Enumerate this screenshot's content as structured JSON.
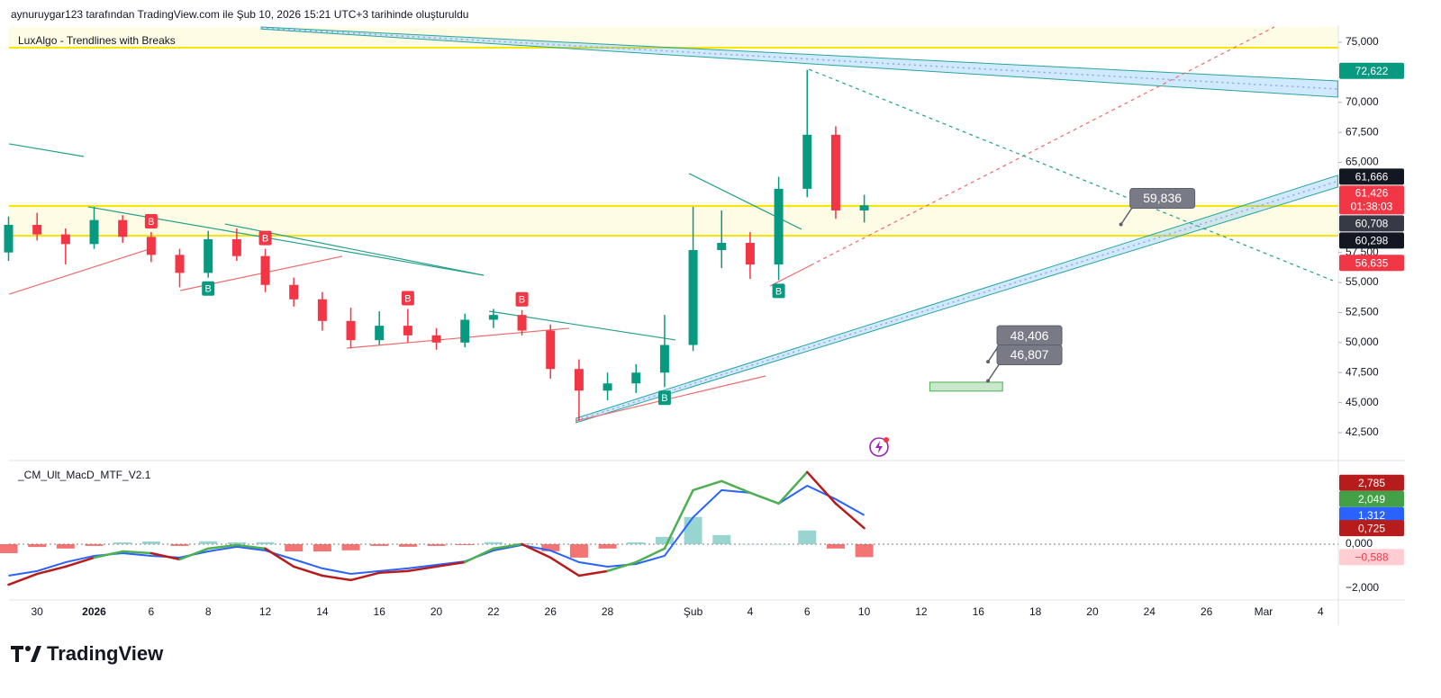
{
  "header": "aynuruygar123 tarafından TradingView.com ile Şub 10, 2026 15:21 UTC+3 tarihinde oluşturuldu",
  "logo": "TradingView",
  "chart_data": {
    "type": "candlestick",
    "indicator_title": "LuxAlgo - Trendlines with Breaks",
    "categories": [
      null,
      "30",
      null,
      "2026",
      null,
      "6",
      null,
      "8",
      null,
      "12",
      null,
      "14",
      null,
      "16",
      null,
      "20",
      null,
      "22",
      null,
      "26",
      null,
      "28",
      null,
      null,
      "Şub",
      null,
      "4",
      null,
      "6",
      null,
      "10",
      null,
      "12",
      null,
      "16",
      null,
      "18",
      null,
      "20",
      null,
      "24",
      null,
      "26",
      null,
      "Mar",
      null,
      "4"
    ],
    "open": [
      57500,
      59800,
      59000,
      58200,
      60200,
      58800,
      57300,
      55800,
      58600,
      57200,
      54800,
      53600,
      51800,
      50200,
      51400,
      50600,
      50000,
      51900,
      52300,
      51000,
      47800,
      46000,
      46600,
      47500,
      49800,
      57700,
      58300,
      56500,
      62800,
      67300,
      61000,
      null,
      null,
      null,
      null,
      null,
      null,
      null,
      null,
      null,
      null,
      null,
      null,
      null,
      null,
      null,
      null
    ],
    "high": [
      60500,
      60800,
      59500,
      61300,
      60600,
      59200,
      57800,
      59300,
      59500,
      57800,
      55400,
      54200,
      52900,
      52600,
      52800,
      51200,
      52400,
      52800,
      52700,
      51500,
      48600,
      47500,
      48200,
      52300,
      61300,
      61000,
      59200,
      63800,
      72700,
      68000,
      62300,
      null,
      null,
      null,
      null,
      null,
      null,
      null,
      null,
      null,
      null,
      null,
      null,
      null,
      null,
      null,
      null
    ],
    "low": [
      56800,
      58500,
      56500,
      57800,
      58300,
      56700,
      54600,
      55400,
      56800,
      54200,
      53000,
      51000,
      49500,
      49800,
      50000,
      49400,
      49600,
      51200,
      50600,
      47000,
      43500,
      45200,
      45800,
      46300,
      49300,
      56200,
      55300,
      55200,
      62100,
      60300,
      60000,
      null,
      null,
      null,
      null,
      null,
      null,
      null,
      null,
      null,
      null,
      null,
      null,
      null,
      null,
      null,
      null
    ],
    "close": [
      59800,
      59000,
      58200,
      60200,
      58800,
      57300,
      55800,
      58600,
      57200,
      54800,
      53600,
      51800,
      50200,
      51400,
      50600,
      50000,
      51900,
      52300,
      51000,
      47800,
      46000,
      46600,
      47500,
      49800,
      57700,
      58300,
      56500,
      62800,
      67300,
      61000,
      61426,
      null,
      null,
      null,
      null,
      null,
      null,
      null,
      null,
      null,
      null,
      null,
      null,
      null,
      null,
      null,
      null
    ],
    "up_color": "#089981",
    "down_color": "#f23645",
    "ylim": [
      40330,
      76270
    ],
    "yticks": [
      {
        "value": 42500,
        "label": "42,500"
      },
      {
        "value": 45000,
        "label": "45,000"
      },
      {
        "value": 47500,
        "label": "47,500"
      },
      {
        "value": 50000,
        "label": "50,000"
      },
      {
        "value": 52500,
        "label": "52,500"
      },
      {
        "value": 55000,
        "label": "55,000"
      },
      {
        "value": 57500,
        "label": "57,500"
      },
      {
        "value": 65000,
        "label": "65,000"
      },
      {
        "value": 67500,
        "label": "67,500"
      },
      {
        "value": 70000,
        "label": "70,000"
      },
      {
        "value": 75000,
        "label": "75,000"
      }
    ],
    "grid": false,
    "zones": [
      [
        58900,
        61670
      ],
      [
        74550,
        76270
      ]
    ],
    "levels": [
      74550,
      61370,
      58900
    ],
    "level_color": "#f5e50a",
    "channels": [
      {
        "start": [
          8.86,
          76270,
          76100
        ],
        "end": [
          46.6,
          71780,
          70430
        ]
      },
      {
        "start": [
          19.9,
          43700,
          43330
        ],
        "end": [
          46.6,
          63920,
          62940
        ]
      }
    ],
    "trendlines": [
      {
        "points": [
          [
            0.02,
            66540
          ],
          [
            2.64,
            65490
          ]
        ],
        "color": "#22a08a",
        "dashed": false
      },
      {
        "points": [
          [
            2.79,
            61300
          ],
          [
            16.66,
            55600
          ]
        ],
        "color": "#22a08a",
        "dashed": false
      },
      {
        "points": [
          [
            7.59,
            59870
          ],
          [
            16.66,
            55600
          ]
        ],
        "color": "#22a08a",
        "dashed": false
      },
      {
        "points": [
          [
            16.85,
            52610
          ],
          [
            23.38,
            50220
          ]
        ],
        "color": "#22a08a",
        "dashed": false
      },
      {
        "points": [
          [
            23.86,
            64070
          ],
          [
            27.8,
            59430
          ]
        ],
        "color": "#22a08a",
        "dashed": false
      },
      {
        "points": [
          [
            0.02,
            54030
          ],
          [
            5.13,
            57930
          ]
        ],
        "color": "#f06a6a",
        "dashed": false
      },
      {
        "points": [
          [
            6.02,
            54330
          ],
          [
            11.7,
            57180
          ]
        ],
        "color": "#f06a6a",
        "dashed": false
      },
      {
        "points": [
          [
            11.86,
            49540
          ],
          [
            19.66,
            51190
          ]
        ],
        "color": "#f06a6a",
        "dashed": false
      },
      {
        "points": [
          [
            19.91,
            43480
          ],
          [
            26.54,
            47220
          ]
        ],
        "color": "#f06a6a",
        "dashed": false
      },
      {
        "points": [
          [
            26.7,
            54710
          ],
          [
            28.12,
            56430
          ]
        ],
        "color": "#f06a6a",
        "dashed": false
      },
      {
        "points": [
          [
            28.12,
            56430
          ],
          [
            44.38,
            76270
          ]
        ],
        "color": "#f06a6a",
        "dashed": true
      },
      {
        "points": [
          [
            28.06,
            72750
          ],
          [
            46.43,
            55160
          ]
        ],
        "color": "#22a08a",
        "dashed": true
      }
    ],
    "box": {
      "start": 32.3,
      "end": 34.85,
      "top": 46700,
      "bottom": 45960
    },
    "breaks": [
      {
        "label": "B",
        "index": 7,
        "color": "#089981",
        "side": "below"
      },
      {
        "label": "B",
        "index": 23,
        "color": "#089981",
        "side": "below"
      },
      {
        "label": "B",
        "index": 27,
        "color": "#089981",
        "side": "below"
      },
      {
        "label": "B",
        "index": 5,
        "color": "#f23645",
        "side": "above"
      },
      {
        "label": "B",
        "index": 9,
        "color": "#f23645",
        "side": "above"
      },
      {
        "label": "B",
        "index": 14,
        "color": "#f23645",
        "side": "above"
      },
      {
        "label": "B",
        "index": 18,
        "color": "#f23645",
        "side": "above"
      }
    ],
    "annotations": [
      {
        "value": 59836,
        "label": "59,836",
        "index": 39
      },
      {
        "value": 48406,
        "label": "48,406",
        "index": 34.34
      },
      {
        "value": 46807,
        "label": "46,807",
        "index": 34.34
      }
    ],
    "price_labels": [
      {
        "value": 72622,
        "label": "72,622",
        "color": "#089981"
      },
      {
        "value": 61666,
        "label": "61,666",
        "color": "#131722"
      },
      {
        "value": 61426,
        "label": "61,426",
        "sub": "01:38:03",
        "color": "#f23645"
      },
      {
        "value": 60708,
        "label": "60,708",
        "color": "#363a45"
      },
      {
        "value": 60298,
        "label": "60,298",
        "color": "#131722"
      },
      {
        "value": 56635,
        "label": "56,635",
        "color": "#f23645"
      }
    ],
    "macd": {
      "title": "_CM_Ult_MacD_MTF_V2.1",
      "macd": [
        -1840,
        -1350,
        -1020,
        -610,
        -330,
        -410,
        -690,
        -200,
        -40,
        -200,
        -1020,
        -1430,
        -1630,
        -1300,
        -1220,
        -1020,
        -820,
        -200,
        0,
        -610,
        -1430,
        -1220,
        -820,
        -200,
        2450,
        2860,
        2330,
        1840,
        3270,
        1840,
        725,
        null,
        null,
        null,
        null,
        null,
        null,
        null,
        null,
        null,
        null,
        null,
        null,
        null,
        null,
        null,
        null
      ],
      "signal": [
        -1430,
        -1220,
        -820,
        -530,
        -410,
        -530,
        -610,
        -330,
        -120,
        -290,
        -690,
        -1100,
        -1350,
        -1220,
        -1100,
        -940,
        -780,
        -290,
        -40,
        -290,
        -820,
        -1020,
        -900,
        -530,
        1220,
        2450,
        2330,
        1840,
        2650,
        2040,
        1312,
        null,
        null,
        null,
        null,
        null,
        null,
        null,
        null,
        null,
        null,
        null,
        null,
        null,
        null,
        null,
        null
      ],
      "histogram": [
        -410,
        -130,
        -200,
        -80,
        80,
        120,
        -80,
        130,
        80,
        90,
        -330,
        -330,
        -280,
        -80,
        -120,
        -80,
        -40,
        90,
        40,
        -320,
        -610,
        -200,
        80,
        330,
        1230,
        410,
        0,
        0,
        620,
        -200,
        -588,
        null,
        null,
        null,
        null,
        null,
        null,
        null,
        null,
        null,
        null,
        null,
        null,
        null,
        null,
        null,
        null
      ],
      "macd_up_color": "#4caf50",
      "macd_down_color": "#b71c1c",
      "signal_color": "#2962ff",
      "hist_up_color": "#80cbc4",
      "hist_down_color": "#ef5350",
      "ylim": [
        -2450,
        3670
      ],
      "yticks": [
        {
          "value": 0,
          "label": "0,000"
        },
        {
          "value": -2000,
          "label": "−2,000"
        }
      ],
      "labels": [
        {
          "value": 2785,
          "label": "2,785",
          "color": "#b71c1c"
        },
        {
          "value": 2049,
          "label": "2,049",
          "color": "#43a047"
        },
        {
          "value": 1312,
          "label": "1,312",
          "color": "#2962ff"
        },
        {
          "value": 725,
          "label": "0,725",
          "color": "#b71c1c"
        },
        {
          "value": -588,
          "label": "−0,588",
          "color": "#ffcdd2",
          "text_color": "#f23645"
        }
      ]
    }
  }
}
